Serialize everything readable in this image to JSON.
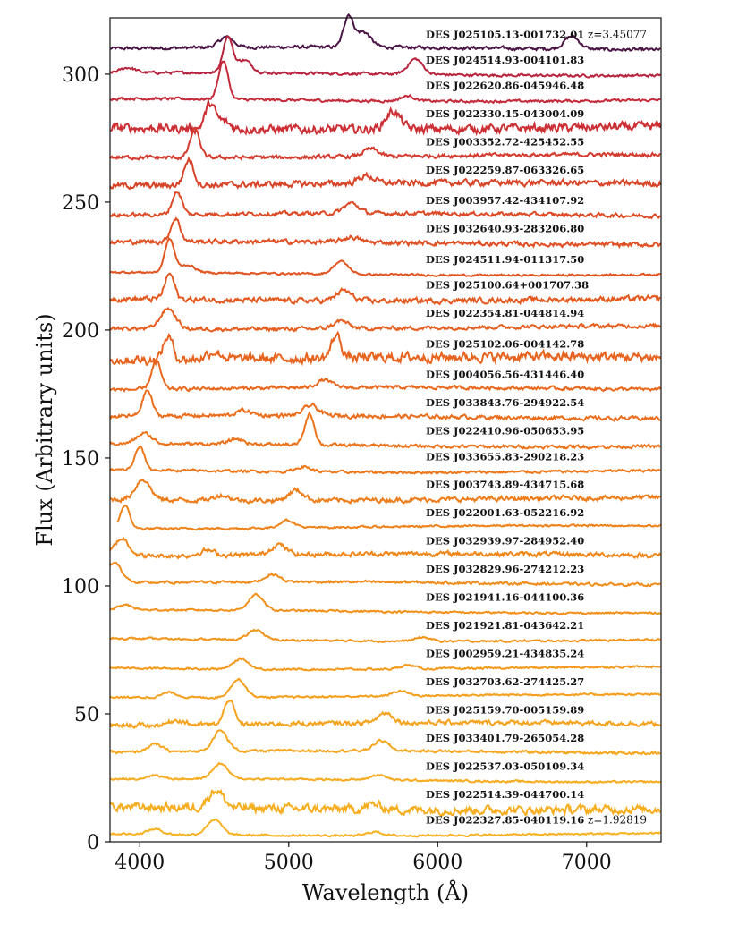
{
  "chart_data": {
    "type": "line",
    "title": "",
    "xlabel": "Wavelength (Å)",
    "ylabel": "Flux (Arbitrary units)",
    "xlim": [
      3800,
      7500
    ],
    "ylim": [
      0,
      322
    ],
    "xticks": [
      4000,
      5000,
      6000,
      7000
    ],
    "yticks": [
      0,
      50,
      100,
      150,
      200,
      250,
      300
    ],
    "grid": false,
    "legend": "none",
    "annotations": [
      {
        "text": "z=3.45077",
        "position": "top-right"
      },
      {
        "text": "z=1.92819",
        "position": "bottom-right"
      }
    ],
    "series": [
      {
        "name": "DES J025105.13-001732.01",
        "color": "#4a1545",
        "baseline": 310,
        "lines": [
          [
            5400,
            12
          ],
          [
            5500,
            6
          ],
          [
            4580,
            4
          ],
          [
            6900,
            5
          ]
        ],
        "noise": 0.5,
        "xmin": 3800
      },
      {
        "name": "DES J024514.93-004101.83",
        "color": "#b8243d",
        "baseline": 300,
        "lines": [
          [
            4590,
            14
          ],
          [
            4700,
            5
          ],
          [
            5850,
            6
          ],
          [
            3920,
            2
          ]
        ],
        "noise": 0.4,
        "xmin": 3800
      },
      {
        "name": "DES J022620.86-045946.48",
        "color": "#c42a3a",
        "baseline": 290,
        "lines": [
          [
            4560,
            15
          ],
          [
            5800,
            2
          ]
        ],
        "noise": 0.4,
        "xmin": 3800
      },
      {
        "name": "DES J022330.15-043004.09",
        "color": "#cc3035",
        "baseline": 279,
        "lines": [
          [
            4470,
            9
          ],
          [
            5700,
            7
          ],
          [
            4550,
            3
          ]
        ],
        "noise": 1.3,
        "xmin": 3800
      },
      {
        "name": "DES J003352.72-425452.55",
        "color": "#d43a2e",
        "baseline": 268,
        "lines": [
          [
            4370,
            11
          ],
          [
            5550,
            3
          ]
        ],
        "noise": 0.6,
        "xmin": 3800
      },
      {
        "name": "DES J022259.87-063326.65",
        "color": "#d84428",
        "baseline": 257,
        "lines": [
          [
            4330,
            10
          ],
          [
            5520,
            3
          ]
        ],
        "noise": 0.9,
        "xmin": 3800
      },
      {
        "name": "DES J003957.42-434107.92",
        "color": "#dc4a26",
        "baseline": 245,
        "lines": [
          [
            4250,
            9
          ],
          [
            5420,
            4
          ]
        ],
        "noise": 0.6,
        "xmin": 3800
      },
      {
        "name": "DES J032640.93-283206.80",
        "color": "#df5024",
        "baseline": 234,
        "lines": [
          [
            4240,
            9
          ],
          [
            5420,
            2
          ]
        ],
        "noise": 0.7,
        "xmin": 3800
      },
      {
        "name": "DES J024511.94-011317.50",
        "color": "#e15522",
        "baseline": 222,
        "lines": [
          [
            4200,
            13
          ],
          [
            5350,
            5
          ],
          [
            4320,
            3
          ]
        ],
        "noise": 0.3,
        "xmin": 3800
      },
      {
        "name": "DES J025100.64+001707.38",
        "color": "#e35a21",
        "baseline": 212,
        "lines": [
          [
            4200,
            10
          ],
          [
            5370,
            4
          ]
        ],
        "noise": 0.8,
        "xmin": 3800
      },
      {
        "name": "DES J022354.81-044814.94",
        "color": "#e55f20",
        "baseline": 201,
        "lines": [
          [
            4190,
            8
          ],
          [
            5350,
            3
          ]
        ],
        "noise": 0.6,
        "xmin": 3800
      },
      {
        "name": "DES J025102.06-004142.78",
        "color": "#e6641f",
        "baseline": 189,
        "lines": [
          [
            4190,
            9
          ],
          [
            5320,
            9
          ],
          [
            4500,
            3
          ]
        ],
        "noise": 1.4,
        "xmin": 3800
      },
      {
        "name": "DES J004056.56-431446.40",
        "color": "#e8691e",
        "baseline": 177,
        "lines": [
          [
            4110,
            11
          ],
          [
            5240,
            3
          ]
        ],
        "noise": 0.5,
        "xmin": 3800
      },
      {
        "name": "DES J033843.76-294922.54",
        "color": "#ea6e1d",
        "baseline": 166,
        "lines": [
          [
            4050,
            10
          ],
          [
            5150,
            4
          ],
          [
            4700,
            2
          ]
        ],
        "noise": 0.6,
        "xmin": 3800
      },
      {
        "name": "DES J022410.96-050653.95",
        "color": "#eb731c",
        "baseline": 155,
        "lines": [
          [
            4030,
            4
          ],
          [
            5140,
            12
          ],
          [
            4650,
            2
          ]
        ],
        "noise": 0.5,
        "xmin": 3800
      },
      {
        "name": "DES J033655.83-290218.23",
        "color": "#ec781b",
        "baseline": 145,
        "lines": [
          [
            4000,
            9
          ],
          [
            5100,
            2
          ]
        ],
        "noise": 0.4,
        "xmin": 3800
      },
      {
        "name": "DES J003743.89-434715.68",
        "color": "#ed7d1b",
        "baseline": 134,
        "lines": [
          [
            4020,
            8
          ],
          [
            5050,
            4
          ],
          [
            4550,
            2
          ]
        ],
        "noise": 0.7,
        "xmin": 3800
      },
      {
        "name": "DES J022001.63-052216.92",
        "color": "#ee821b",
        "baseline": 123,
        "lines": [
          [
            3900,
            9
          ],
          [
            4990,
            3
          ]
        ],
        "noise": 0.3,
        "xmin": 3850
      },
      {
        "name": "DES J032939.97-284952.40",
        "color": "#ef871b",
        "baseline": 112,
        "lines": [
          [
            3880,
            7
          ],
          [
            4930,
            4
          ],
          [
            4450,
            2
          ]
        ],
        "noise": 0.7,
        "xmin": 3800
      },
      {
        "name": "DES J032829.96-274212.23",
        "color": "#f08c1b",
        "baseline": 101,
        "lines": [
          [
            3830,
            8
          ],
          [
            4890,
            3
          ]
        ],
        "noise": 0.4,
        "xmin": 3800
      },
      {
        "name": "DES J021941.16-044100.36",
        "color": "#f1911b",
        "baseline": 90,
        "lines": [
          [
            4780,
            6
          ],
          [
            3900,
            2
          ]
        ],
        "noise": 0.3,
        "xmin": 3800
      },
      {
        "name": "DES J021921.81-043642.21",
        "color": "#f2951c",
        "baseline": 79,
        "lines": [
          [
            4780,
            4
          ],
          [
            5900,
            1.5
          ]
        ],
        "noise": 0.3,
        "xmin": 3800
      },
      {
        "name": "DES J002959.21-434835.24",
        "color": "#f39a1c",
        "baseline": 68,
        "lines": [
          [
            4680,
            4
          ],
          [
            5800,
            1.5
          ]
        ],
        "noise": 0.3,
        "xmin": 3800
      },
      {
        "name": "DES J032703.62-274425.27",
        "color": "#f49f1d",
        "baseline": 57,
        "lines": [
          [
            4660,
            7
          ],
          [
            5750,
            2
          ],
          [
            4200,
            2
          ]
        ],
        "noise": 0.3,
        "xmin": 3800
      },
      {
        "name": "DES J025159.70-005159.89",
        "color": "#f5a31e",
        "baseline": 46,
        "lines": [
          [
            4600,
            10
          ],
          [
            5650,
            4
          ],
          [
            4250,
            2
          ]
        ],
        "noise": 0.7,
        "xmin": 3800
      },
      {
        "name": "DES J033401.79-265054.28",
        "color": "#f5a71f",
        "baseline": 35,
        "lines": [
          [
            4540,
            8
          ],
          [
            5620,
            4
          ],
          [
            4100,
            3
          ]
        ],
        "noise": 0.4,
        "xmin": 3800
      },
      {
        "name": "DES J022537.03-050109.34",
        "color": "#f6ab20",
        "baseline": 24,
        "lines": [
          [
            4540,
            6
          ],
          [
            5600,
            2
          ],
          [
            4100,
            1.5
          ]
        ],
        "noise": 0.3,
        "xmin": 3800
      },
      {
        "name": "DES J022514.39-044700.14",
        "color": "#f6ae21",
        "baseline": 13,
        "lines": [
          [
            4510,
            7
          ],
          [
            5570,
            2
          ]
        ],
        "noise": 1.3,
        "xmin": 3800
      },
      {
        "name": "DES J022327.85-040119.16",
        "color": "#f7b223",
        "baseline": 3,
        "lines": [
          [
            4500,
            6
          ],
          [
            5580,
            1.5
          ],
          [
            4100,
            2
          ]
        ],
        "noise": 0.3,
        "xmin": 3800
      }
    ]
  }
}
